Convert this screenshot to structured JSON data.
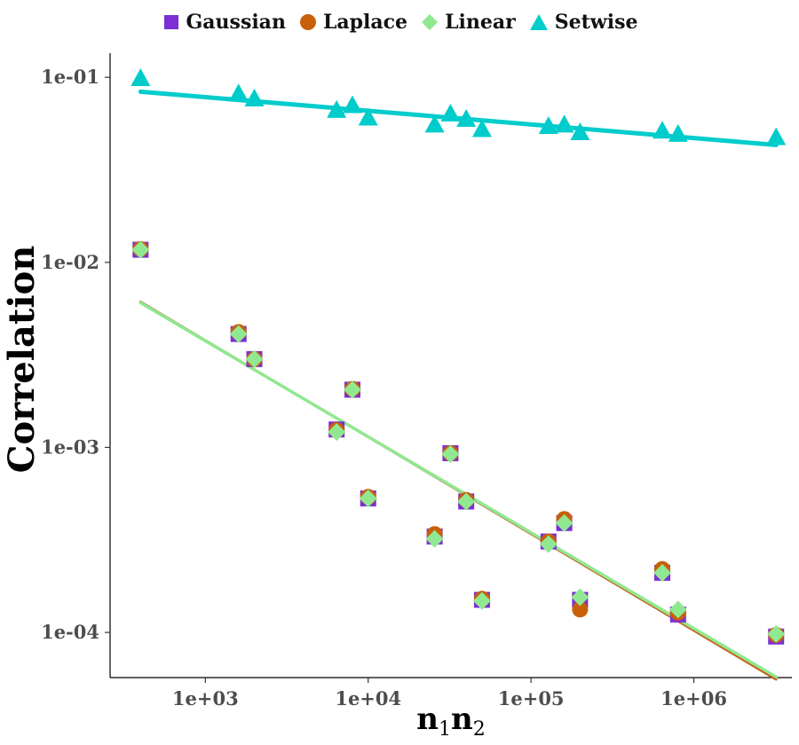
{
  "chart_data": {
    "type": "scatter",
    "x_scale": "log10",
    "y_scale": "log10",
    "xlim": [
      260,
      4000000
    ],
    "ylim": [
      5.7e-05,
      0.135
    ],
    "x_ticks": [
      1000,
      10000,
      100000,
      1000000
    ],
    "x_tick_labels": [
      "1e+03",
      "1e+04",
      "1e+05",
      "1e+06"
    ],
    "y_ticks": [
      0.0001,
      0.001,
      0.01,
      0.1
    ],
    "y_tick_labels": [
      "1e-04",
      "1e-03",
      "1e-02",
      "1e-01"
    ],
    "ylabel": "Correlation",
    "xlabel": {
      "base": "n",
      "sub1": "1",
      "mid": "n",
      "sub2": "2"
    },
    "legend_position": "top",
    "grid": false,
    "series": [
      {
        "name": "Gaussian",
        "color": "#7B2FD4",
        "shape": "square",
        "x": [
          400,
          1600,
          2000,
          6400,
          8000,
          10000,
          25600,
          32000,
          40000,
          50000,
          128000,
          160000,
          200000,
          640000,
          800000,
          3200000
        ],
        "y": [
          0.0117,
          0.0041,
          0.003,
          0.00125,
          0.00205,
          0.00053,
          0.00033,
          0.00093,
          0.00051,
          0.00015,
          0.00031,
          0.00039,
          0.00015,
          0.00021,
          0.000125,
          9.5e-05
        ],
        "fit": {
          "x": [
            400,
            3200000
          ],
          "y": [
            0.00612,
            5.57e-05
          ]
        }
      },
      {
        "name": "Laplace",
        "color": "#C8600A",
        "shape": "circle",
        "x": [
          400,
          1600,
          2000,
          6400,
          8000,
          10000,
          25600,
          32000,
          40000,
          50000,
          128000,
          160000,
          200000,
          640000,
          800000,
          3200000
        ],
        "y": [
          0.0118,
          0.0042,
          0.003,
          0.00124,
          0.00207,
          0.00054,
          0.00034,
          0.00093,
          0.00052,
          0.000152,
          0.00031,
          0.00041,
          0.000133,
          0.00022,
          0.000128,
          9.7e-05
        ],
        "fit": {
          "x": [
            400,
            3200000
          ],
          "y": [
            0.00612,
            5.57e-05
          ]
        }
      },
      {
        "name": "Linear",
        "color": "#90E890",
        "shape": "diamond",
        "x": [
          400,
          1600,
          2000,
          6400,
          8000,
          10000,
          25600,
          32000,
          40000,
          50000,
          128000,
          160000,
          200000,
          640000,
          800000,
          3200000
        ],
        "y": [
          0.0117,
          0.0041,
          0.003,
          0.00121,
          0.00205,
          0.00053,
          0.00032,
          0.00092,
          0.00051,
          0.000148,
          0.0003,
          0.00039,
          0.000155,
          0.00021,
          0.000133,
          9.8e-05
        ],
        "fit": {
          "x": [
            400,
            3200000
          ],
          "y": [
            0.00605,
            5.75e-05
          ]
        }
      },
      {
        "name": "Setwise",
        "color": "#00CCCC",
        "shape": "triangle",
        "x": [
          400,
          1600,
          2000,
          6400,
          8000,
          10000,
          25600,
          32000,
          40000,
          50000,
          128000,
          160000,
          200000,
          640000,
          800000,
          3200000
        ],
        "y": [
          0.098,
          0.081,
          0.076,
          0.066,
          0.07,
          0.06,
          0.055,
          0.063,
          0.059,
          0.052,
          0.054,
          0.055,
          0.05,
          0.051,
          0.049,
          0.047
        ],
        "fit": {
          "x": [
            400,
            3200000
          ],
          "y": [
            0.0836,
            0.0431
          ]
        }
      }
    ]
  }
}
